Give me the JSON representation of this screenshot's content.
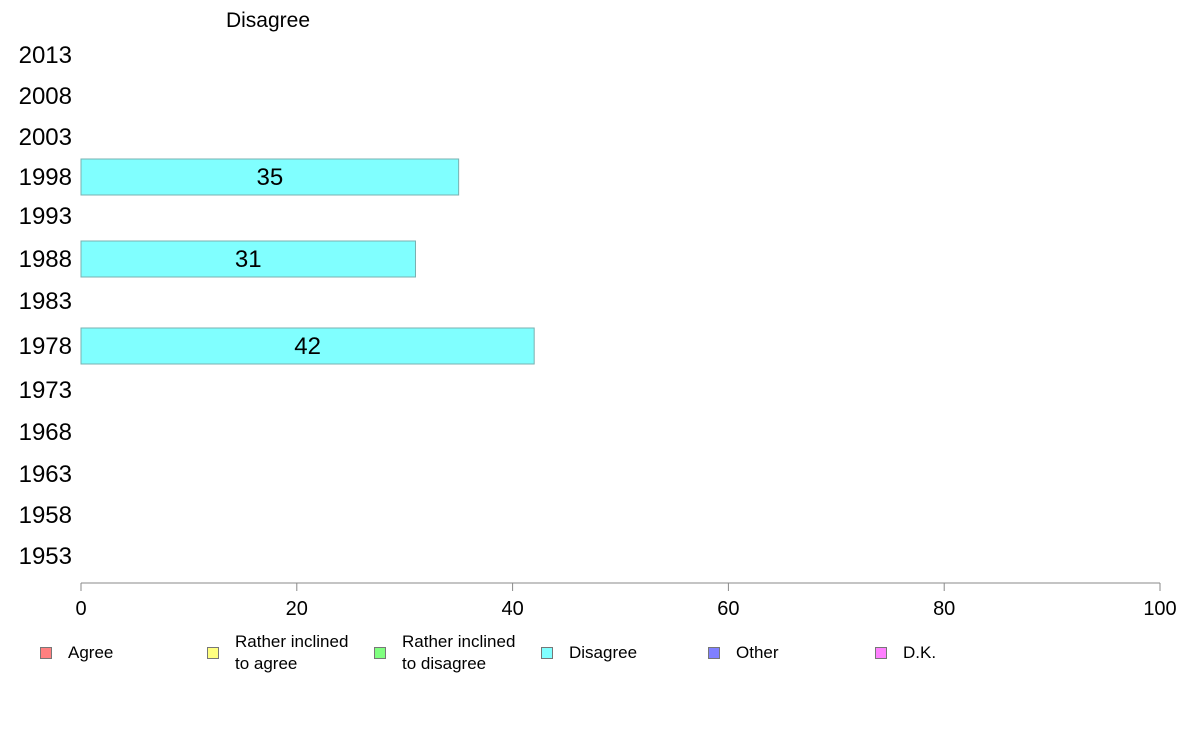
{
  "chart_data": {
    "type": "bar",
    "orientation": "horizontal",
    "title": "Disagree",
    "categories": [
      "2013",
      "2008",
      "2003",
      "1998",
      "1993",
      "1988",
      "1983",
      "1978",
      "1973",
      "1968",
      "1963",
      "1958",
      "1953"
    ],
    "series": [
      {
        "name": "Disagree",
        "color": "#80ffff",
        "values": [
          null,
          null,
          null,
          35,
          null,
          31,
          null,
          42,
          null,
          null,
          null,
          null,
          null
        ]
      }
    ],
    "xlim": [
      0,
      100
    ],
    "xticks": [
      0,
      20,
      40,
      60,
      80,
      100
    ],
    "grid": false,
    "legend_position": "bottom"
  },
  "legend": [
    {
      "label": "Agree",
      "color": "#ff8080"
    },
    {
      "label": "Rather inclined\nto agree",
      "color": "#ffff80"
    },
    {
      "label": "Rather inclined\nto disagree",
      "color": "#80ff80"
    },
    {
      "label": "Disagree",
      "color": "#80ffff"
    },
    {
      "label": "Other",
      "color": "#8080ff"
    },
    {
      "label": "D.K.",
      "color": "#ff80ff"
    }
  ]
}
